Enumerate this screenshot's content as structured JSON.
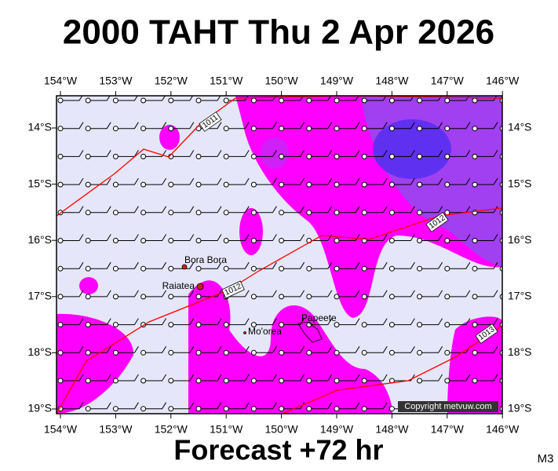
{
  "title": "2000 TAHT Thu 2 Apr 2026",
  "subtitle": "Forecast +72 hr",
  "code": "M3",
  "copyright": "Copyright metvuw.com",
  "lon_ticks": [
    {
      "value": -154,
      "label": "154°W"
    },
    {
      "value": -153,
      "label": "153°W"
    },
    {
      "value": -152,
      "label": "152°W"
    },
    {
      "value": -151,
      "label": "151°W"
    },
    {
      "value": -150,
      "label": "150°W"
    },
    {
      "value": -149,
      "label": "149°W"
    },
    {
      "value": -148,
      "label": "148°W"
    },
    {
      "value": -147,
      "label": "147°W"
    },
    {
      "value": -146,
      "label": "146°W"
    }
  ],
  "lat_ticks": [
    {
      "value": -14,
      "label": "14°S"
    },
    {
      "value": -15,
      "label": "15°S"
    },
    {
      "value": -16,
      "label": "16°S"
    },
    {
      "value": -17,
      "label": "17°S"
    },
    {
      "value": -18,
      "label": "18°S"
    },
    {
      "value": -19,
      "label": "19°S"
    }
  ],
  "places": [
    "Bora Bora",
    "Raiatea",
    "Mo'orea",
    "Papeete"
  ],
  "isobar_labels": [
    "1011",
    "1012",
    "1012",
    "1013"
  ]
}
